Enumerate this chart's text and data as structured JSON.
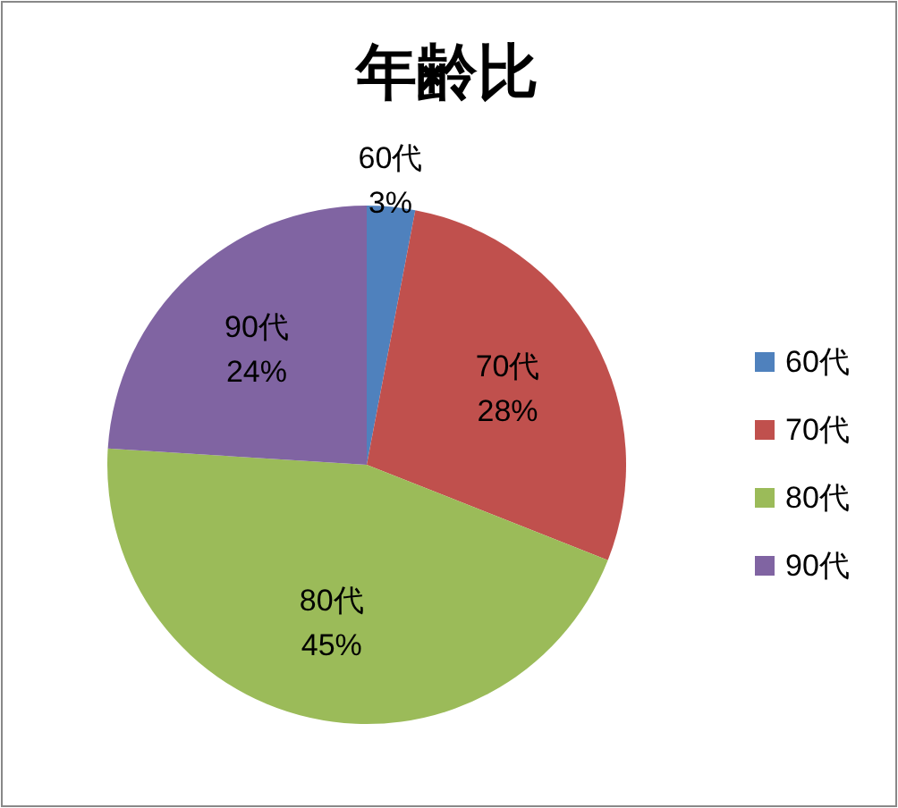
{
  "chart_data": {
    "type": "pie",
    "title": "年齢比",
    "categories": [
      "60代",
      "70代",
      "80代",
      "90代"
    ],
    "values": [
      3,
      28,
      45,
      24
    ],
    "value_labels": [
      "3%",
      "28%",
      "45%",
      "24%"
    ],
    "colors": [
      "#4f81bd",
      "#c0504d",
      "#9bbb59",
      "#8064a2"
    ],
    "legend": "right"
  }
}
